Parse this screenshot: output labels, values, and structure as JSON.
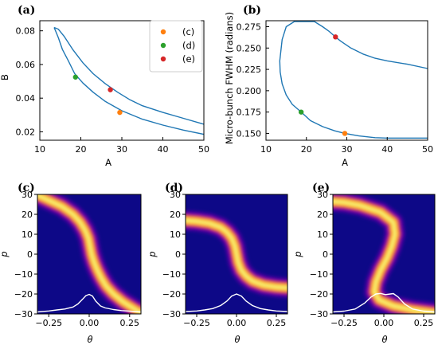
{
  "chart_data": [
    {
      "type": "line",
      "panel_label": "(a)",
      "xlabel": "A",
      "ylabel": "B",
      "xlim": [
        10,
        50
      ],
      "ylim": [
        0.015,
        0.086
      ],
      "xticks": [
        10,
        20,
        30,
        40,
        50
      ],
      "yticks": [
        0.02,
        0.04,
        0.06,
        0.08
      ],
      "ytick_labels": [
        "0.02",
        "0.04",
        "0.06",
        "0.08"
      ],
      "line_color": "#1f77b4",
      "series": [
        {
          "x": [
            13.5,
            14.5,
            15.5,
            17,
            18.5,
            20.5,
            23,
            26,
            30,
            35,
            40,
            45,
            50
          ],
          "y": [
            0.082,
            0.076,
            0.069,
            0.062,
            0.0545,
            0.049,
            0.0435,
            0.038,
            0.0325,
            0.0275,
            0.024,
            0.021,
            0.0185
          ]
        },
        {
          "x": [
            13.5,
            14.5,
            16,
            18,
            20.5,
            23,
            26,
            29,
            32,
            35,
            40,
            45,
            50
          ],
          "y": [
            0.082,
            0.081,
            0.0765,
            0.069,
            0.061,
            0.0545,
            0.0485,
            0.0435,
            0.039,
            0.0355,
            0.0315,
            0.028,
            0.0245
          ]
        }
      ],
      "points": [
        {
          "label": "(c)",
          "x": 29.5,
          "y": 0.0315,
          "color": "#ff7f0e"
        },
        {
          "label": "(d)",
          "x": 18.7,
          "y": 0.0525,
          "color": "#2ca02c"
        },
        {
          "label": "(e)",
          "x": 27.2,
          "y": 0.045,
          "color": "#d62728"
        }
      ],
      "legend": {
        "location": "top-right",
        "entries": [
          "(c)",
          "(d)",
          "(e)"
        ]
      }
    },
    {
      "type": "line",
      "panel_label": "(b)",
      "xlabel": "A",
      "ylabel": "Micro-bunch FWHM (radians)",
      "xlim": [
        10,
        50
      ],
      "ylim": [
        0.142,
        0.282
      ],
      "xticks": [
        10,
        20,
        30,
        40,
        50
      ],
      "yticks": [
        0.15,
        0.175,
        0.2,
        0.225,
        0.25,
        0.275
      ],
      "ytick_labels": [
        "0.150",
        "0.175",
        "0.200",
        "0.225",
        "0.250",
        "0.275"
      ],
      "line_color": "#1f77b4",
      "series": [
        {
          "x": [
            50,
            45,
            40,
            37,
            34,
            31,
            28.5,
            27.2,
            25.5,
            24,
            22,
            19.5,
            17,
            15,
            14,
            13.4,
            13.5,
            14,
            15,
            16.5,
            18.7,
            21,
            24,
            27,
            29.5,
            33,
            37,
            40,
            45,
            50
          ],
          "y": [
            0.226,
            0.231,
            0.235,
            0.238,
            0.243,
            0.25,
            0.258,
            0.263,
            0.27,
            0.275,
            0.281,
            0.281,
            0.281,
            0.275,
            0.26,
            0.235,
            0.222,
            0.208,
            0.195,
            0.184,
            0.175,
            0.165,
            0.158,
            0.153,
            0.15,
            0.147,
            0.145,
            0.1445,
            0.1445,
            0.1445
          ]
        }
      ],
      "points": [
        {
          "label": "(c)",
          "x": 29.5,
          "y": 0.15,
          "color": "#ff7f0e"
        },
        {
          "label": "(d)",
          "x": 18.7,
          "y": 0.175,
          "color": "#2ca02c"
        },
        {
          "label": "(e)",
          "x": 27.2,
          "y": 0.263,
          "color": "#d62728"
        }
      ]
    },
    {
      "type": "heatmap",
      "panel_label": "(c)",
      "xlabel": "θ",
      "ylabel": "p",
      "xlim": [
        -0.32,
        0.32
      ],
      "ylim": [
        -30,
        30
      ],
      "xticks": [
        -0.25,
        0,
        0.25
      ],
      "xtick_labels": [
        "−0.25",
        "0.00",
        "0.25"
      ],
      "yticks": [
        -30,
        -20,
        -10,
        0,
        10,
        20,
        30
      ],
      "ytick_labels": [
        "−30",
        "−20",
        "−10",
        "0",
        "10",
        "20",
        "30"
      ],
      "ridge": {
        "p": [
          30,
          27,
          24,
          20,
          16,
          12,
          8,
          4,
          0,
          -4,
          -8,
          -12,
          -16,
          -20,
          -24,
          -27,
          -30
        ],
        "theta": [
          -0.33,
          -0.25,
          -0.17,
          -0.1,
          -0.055,
          -0.025,
          -0.005,
          0.005,
          0.015,
          0.03,
          0.05,
          0.075,
          0.105,
          0.15,
          0.21,
          0.27,
          0.33
        ]
      },
      "profile": {
        "theta": [
          -0.32,
          -0.25,
          -0.2,
          -0.15,
          -0.1,
          -0.07,
          -0.04,
          -0.02,
          0,
          0.02,
          0.04,
          0.07,
          0.1,
          0.15,
          0.2,
          0.25,
          0.32
        ],
        "p": [
          -29,
          -28.5,
          -28,
          -27.5,
          -26.5,
          -25,
          -22.5,
          -20.8,
          -20.2,
          -21,
          -23.5,
          -26,
          -27,
          -27.8,
          -28.3,
          -28.6,
          -29
        ]
      }
    },
    {
      "type": "heatmap",
      "panel_label": "(d)",
      "xlabel": "θ",
      "ylabel": "p",
      "xlim": [
        -0.32,
        0.32
      ],
      "ylim": [
        -30,
        30
      ],
      "xticks": [
        -0.25,
        0,
        0.25
      ],
      "xtick_labels": [
        "−0.25",
        "0.00",
        "0.25"
      ],
      "yticks": [
        -30,
        -20,
        -10,
        0,
        10,
        20,
        30
      ],
      "ytick_labels": [
        "−30",
        "−20",
        "−10",
        "0",
        "10",
        "20",
        "30"
      ],
      "ridge": {
        "p": [
          17,
          16.5,
          15.5,
          13.5,
          11,
          8,
          4,
          0,
          -4,
          -8,
          -11,
          -13.5,
          -15.5,
          -16.5,
          -17
        ],
        "theta": [
          -0.33,
          -0.25,
          -0.17,
          -0.1,
          -0.06,
          -0.03,
          -0.01,
          0.0,
          0.01,
          0.03,
          0.06,
          0.1,
          0.17,
          0.25,
          0.33
        ]
      },
      "profile": {
        "theta": [
          -0.32,
          -0.25,
          -0.2,
          -0.15,
          -0.1,
          -0.06,
          -0.03,
          0,
          0.03,
          0.06,
          0.1,
          0.15,
          0.2,
          0.25,
          0.32
        ],
        "p": [
          -28.8,
          -28.5,
          -28,
          -27.3,
          -25.8,
          -23.5,
          -21,
          -20,
          -21,
          -23.5,
          -25.8,
          -27.3,
          -28,
          -28.5,
          -28.8
        ]
      }
    },
    {
      "type": "heatmap",
      "panel_label": "(e)",
      "xlabel": "θ",
      "ylabel": "p",
      "xlim": [
        -0.32,
        0.32
      ],
      "ylim": [
        -30,
        30
      ],
      "xticks": [
        -0.25,
        0,
        0.25
      ],
      "xtick_labels": [
        "−0.25",
        "0.00",
        "0.25"
      ],
      "yticks": [
        -30,
        -20,
        -10,
        0,
        10,
        20,
        30
      ],
      "ytick_labels": [
        "−30",
        "−20",
        "−10",
        "0",
        "10",
        "20",
        "30"
      ],
      "ridge": {
        "p": [
          26.5,
          26,
          24.5,
          21,
          16,
          10,
          4,
          -2,
          -8,
          -14,
          -19,
          -23,
          -26,
          -28,
          -29.5
        ],
        "theta": [
          -0.33,
          -0.25,
          -0.15,
          -0.02,
          0.06,
          0.07,
          0.05,
          0.02,
          -0.02,
          -0.05,
          -0.06,
          -0.03,
          0.06,
          0.18,
          0.33
        ]
      },
      "profile": {
        "theta": [
          -0.32,
          -0.25,
          -0.18,
          -0.12,
          -0.08,
          -0.05,
          -0.02,
          0.01,
          0.04,
          0.06,
          0.09,
          0.13,
          0.18,
          0.25,
          0.32
        ],
        "p": [
          -29,
          -28.6,
          -27.5,
          -24.5,
          -21.5,
          -20,
          -19.7,
          -20.3,
          -20,
          -19.8,
          -21.5,
          -25,
          -27.5,
          -28.6,
          -29
        ]
      }
    }
  ]
}
